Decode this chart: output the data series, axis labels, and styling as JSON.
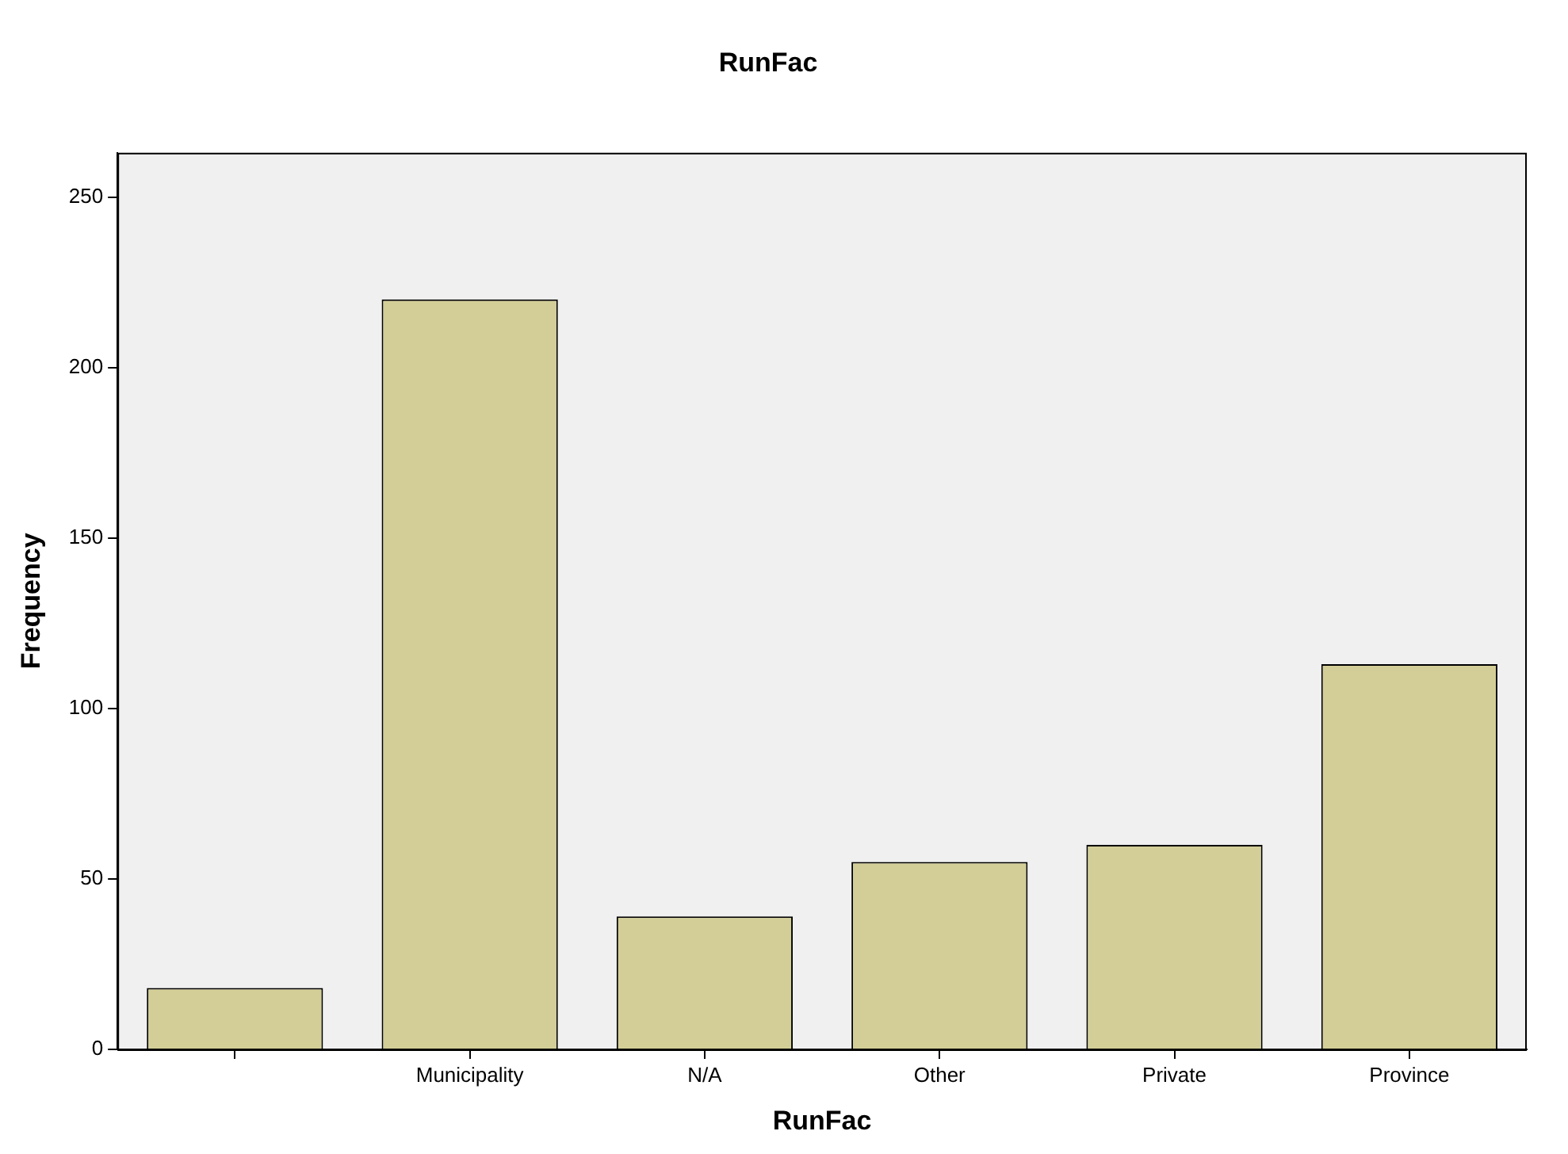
{
  "chart_data": {
    "type": "bar",
    "title": "RunFac",
    "xlabel": "RunFac",
    "ylabel": "Frequency",
    "categories": [
      null,
      "Municipality",
      "N/A",
      "Other",
      "Private",
      "Province"
    ],
    "values": [
      18,
      220,
      39,
      55,
      60,
      113
    ],
    "color": "#d3ce97",
    "ylim": [
      0,
      263
    ],
    "yticks": [
      0,
      50,
      100,
      150,
      200,
      250
    ],
    "grid": false,
    "legend": false
  }
}
